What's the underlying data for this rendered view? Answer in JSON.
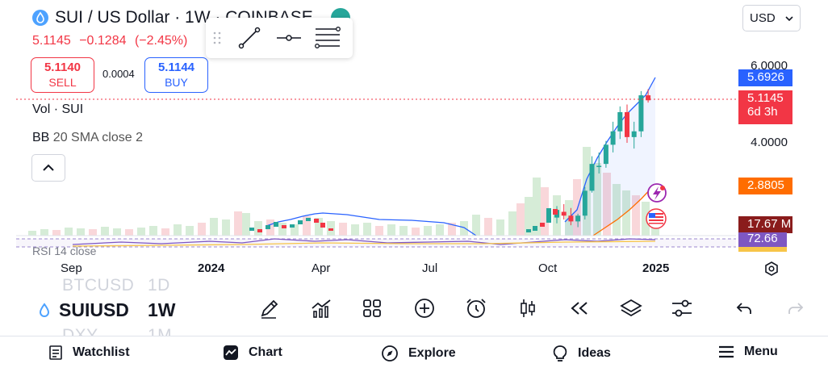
{
  "legend": {
    "title": "SUI / US Dollar · 1W · COINBASE",
    "price": "5.1145",
    "change": "−0.1284",
    "change_pct": "(−2.45%)"
  },
  "trade": {
    "sell_price": "5.1140",
    "sell_label": "SELL",
    "spread": "0.0004",
    "buy_price": "5.1144",
    "buy_label": "BUY"
  },
  "indicators": {
    "volume": "Vol · SUI",
    "bb_name": "BB",
    "bb_params": "20 SMA close 2",
    "rsi": "RSI 14 close"
  },
  "currency": "USD",
  "price_axis": {
    "labels": [
      "6.0000",
      "4.0000"
    ],
    "current_price": "5.1145",
    "countdown": "6d 3h",
    "upper_band": "5.6926",
    "lower_band": "2.8805",
    "volume_value": "17.67 M",
    "rsi_value": "72.66"
  },
  "time_axis": [
    "Sep",
    "2024",
    "Apr",
    "Jul",
    "Oct",
    "2025"
  ],
  "symbol_bar": {
    "symbol": "SUIUSD",
    "interval": "1W",
    "ghost_prev_symbol": "BTCUSD",
    "ghost_prev_interval": "1D",
    "ghost_next_symbol": "DXY",
    "ghost_next_interval": "1M"
  },
  "nav": {
    "watchlist": "Watchlist",
    "chart": "Chart",
    "explore": "Explore",
    "ideas": "Ideas",
    "menu": "Menu"
  },
  "colors": {
    "up": "#26a69a",
    "down": "#f23645",
    "upper_band": "#2962ff",
    "lower_band": "#ff6d00",
    "volume_tag": "#8a1c1c",
    "rsi_tag": "#7e57c2"
  },
  "icons": {
    "logo": "sui-drop-icon",
    "alert_badge": "lightning-icon",
    "event_badge": "us-flag-icon"
  },
  "chart_data": {
    "type": "candlestick",
    "x": [
      "2024-10-07",
      "2024-10-14",
      "2024-10-21",
      "2024-10-28",
      "2024-11-04",
      "2024-11-11",
      "2024-11-18",
      "2024-11-25",
      "2024-12-02",
      "2024-12-09",
      "2024-12-16",
      "2024-12-23",
      "2024-12-30",
      "2025-01-06"
    ],
    "open": [
      2.05,
      2.2,
      2.1,
      1.95,
      2.1,
      2.75,
      3.4,
      3.45,
      3.95,
      4.3,
      4.8,
      4.15,
      4.3,
      5.24
    ],
    "high": [
      2.35,
      2.4,
      2.3,
      2.15,
      2.85,
      3.65,
      3.75,
      4.05,
      4.55,
      4.95,
      5.0,
      4.55,
      5.35,
      5.4
    ],
    "low": [
      1.9,
      2.0,
      1.85,
      1.8,
      2.0,
      2.7,
      3.2,
      3.35,
      3.75,
      4.1,
      4.0,
      3.85,
      4.15,
      5.05
    ],
    "close": [
      2.25,
      2.1,
      1.95,
      2.1,
      2.75,
      3.45,
      3.4,
      3.95,
      4.3,
      4.8,
      4.15,
      4.3,
      5.24,
      5.11
    ],
    "price_axis_ticks": [
      4.0,
      6.0
    ],
    "current_price": 5.1145,
    "bb_upper_last": 5.6926,
    "bb_lower_last": 2.8805
  }
}
